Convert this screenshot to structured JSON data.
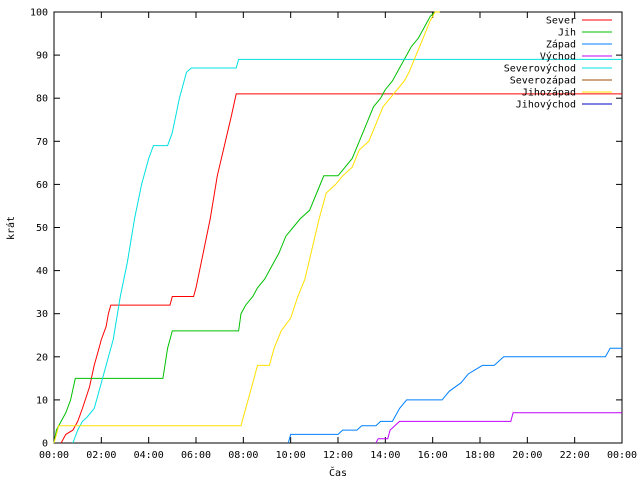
{
  "chart_data": {
    "type": "line",
    "xlabel": "Čas",
    "ylabel": "krát",
    "xlim": [
      0,
      24
    ],
    "ylim": [
      0,
      100
    ],
    "x_unit": "hours",
    "x_ticks": [
      {
        "value": 0,
        "label": "00:00"
      },
      {
        "value": 2,
        "label": "02:00"
      },
      {
        "value": 4,
        "label": "04:00"
      },
      {
        "value": 6,
        "label": "06:00"
      },
      {
        "value": 8,
        "label": "08:00"
      },
      {
        "value": 10,
        "label": "10:00"
      },
      {
        "value": 12,
        "label": "12:00"
      },
      {
        "value": 14,
        "label": "14:00"
      },
      {
        "value": 16,
        "label": "16:00"
      },
      {
        "value": 18,
        "label": "18:00"
      },
      {
        "value": 20,
        "label": "20:00"
      },
      {
        "value": 22,
        "label": "22:00"
      },
      {
        "value": 24,
        "label": "00:00"
      }
    ],
    "y_ticks": [
      0,
      10,
      20,
      30,
      40,
      50,
      60,
      70,
      80,
      90,
      100
    ],
    "grid": false,
    "legend_position": "top-right",
    "series": [
      {
        "name": "Sever",
        "color": "#ff0000",
        "points": [
          [
            0.3,
            0
          ],
          [
            0.5,
            2
          ],
          [
            0.8,
            3
          ],
          [
            1.0,
            5
          ],
          [
            1.2,
            8
          ],
          [
            1.5,
            13
          ],
          [
            1.7,
            18
          ],
          [
            1.9,
            22
          ],
          [
            2.0,
            24
          ],
          [
            2.2,
            27
          ],
          [
            2.3,
            30
          ],
          [
            2.4,
            32
          ],
          [
            3.8,
            32
          ],
          [
            4.1,
            32
          ],
          [
            4.9,
            32
          ],
          [
            5.0,
            34
          ],
          [
            5.9,
            34
          ],
          [
            6.0,
            36
          ],
          [
            6.3,
            44
          ],
          [
            6.6,
            52
          ],
          [
            6.9,
            62
          ],
          [
            7.2,
            69
          ],
          [
            7.5,
            76
          ],
          [
            7.7,
            81
          ],
          [
            24,
            81
          ]
        ]
      },
      {
        "name": "Jih",
        "color": "#00c000",
        "points": [
          [
            0,
            0
          ],
          [
            0.1,
            3
          ],
          [
            0.3,
            5
          ],
          [
            0.5,
            7
          ],
          [
            0.7,
            10
          ],
          [
            0.9,
            15
          ],
          [
            4.5,
            15
          ],
          [
            4.6,
            15
          ],
          [
            4.8,
            22
          ],
          [
            5.0,
            26
          ],
          [
            7.8,
            26
          ],
          [
            7.9,
            30
          ],
          [
            8.1,
            32
          ],
          [
            8.4,
            34
          ],
          [
            8.6,
            36
          ],
          [
            8.9,
            38
          ],
          [
            9.2,
            41
          ],
          [
            9.5,
            44
          ],
          [
            9.8,
            48
          ],
          [
            10.1,
            50
          ],
          [
            10.4,
            52
          ],
          [
            10.8,
            54
          ],
          [
            11.1,
            58
          ],
          [
            11.4,
            62
          ],
          [
            12.0,
            62
          ],
          [
            12.3,
            64
          ],
          [
            12.6,
            66
          ],
          [
            12.9,
            70
          ],
          [
            13.2,
            74
          ],
          [
            13.5,
            78
          ],
          [
            13.8,
            80
          ],
          [
            14.0,
            82
          ],
          [
            14.3,
            84
          ],
          [
            14.5,
            86
          ],
          [
            14.8,
            89
          ],
          [
            15.1,
            92
          ],
          [
            15.4,
            94
          ],
          [
            15.7,
            97
          ],
          [
            15.9,
            99
          ],
          [
            16.1,
            100
          ],
          [
            16.2,
            100
          ]
        ]
      },
      {
        "name": "Západ",
        "color": "#0080ff",
        "points": [
          [
            9.9,
            0
          ],
          [
            10.0,
            2
          ],
          [
            12.0,
            2
          ],
          [
            12.2,
            3
          ],
          [
            12.8,
            3
          ],
          [
            13.0,
            4
          ],
          [
            13.6,
            4
          ],
          [
            13.8,
            5
          ],
          [
            14.3,
            5
          ],
          [
            14.6,
            8
          ],
          [
            14.9,
            10
          ],
          [
            16.4,
            10
          ],
          [
            16.7,
            12
          ],
          [
            17.2,
            14
          ],
          [
            17.5,
            16
          ],
          [
            18.1,
            18
          ],
          [
            18.6,
            18
          ],
          [
            19.0,
            20
          ],
          [
            20.3,
            20
          ],
          [
            23.3,
            20
          ],
          [
            23.5,
            22
          ],
          [
            24,
            22
          ]
        ]
      },
      {
        "name": "Východ",
        "color": "#c000ff",
        "points": [
          [
            13.6,
            0
          ],
          [
            13.7,
            1
          ],
          [
            14.1,
            1
          ],
          [
            14.2,
            3
          ],
          [
            14.4,
            4
          ],
          [
            14.6,
            5
          ],
          [
            19.3,
            5
          ],
          [
            19.4,
            7
          ],
          [
            24,
            7
          ]
        ]
      },
      {
        "name": "Severovýchod",
        "color": "#00e0e0",
        "points": [
          [
            0.8,
            0
          ],
          [
            1.0,
            3
          ],
          [
            1.2,
            5
          ],
          [
            1.4,
            6
          ],
          [
            1.7,
            8
          ],
          [
            1.9,
            12
          ],
          [
            2.2,
            18
          ],
          [
            2.5,
            24
          ],
          [
            2.8,
            34
          ],
          [
            3.1,
            42
          ],
          [
            3.4,
            52
          ],
          [
            3.7,
            60
          ],
          [
            4.0,
            66
          ],
          [
            4.2,
            69
          ],
          [
            4.8,
            69
          ],
          [
            5.0,
            72
          ],
          [
            5.3,
            80
          ],
          [
            5.6,
            86
          ],
          [
            5.8,
            87
          ],
          [
            7.7,
            87
          ],
          [
            7.8,
            89
          ],
          [
            24,
            89
          ]
        ]
      },
      {
        "name": "Jihozápad",
        "color": "#ffe000",
        "points": [
          [
            0,
            0
          ],
          [
            0.1,
            2
          ],
          [
            0.2,
            4
          ],
          [
            7.9,
            4
          ],
          [
            8.0,
            6
          ],
          [
            8.2,
            10
          ],
          [
            8.4,
            14
          ],
          [
            8.6,
            18
          ],
          [
            9.1,
            18
          ],
          [
            9.3,
            22
          ],
          [
            9.6,
            26
          ],
          [
            10.0,
            29
          ],
          [
            10.3,
            34
          ],
          [
            10.6,
            38
          ],
          [
            10.9,
            45
          ],
          [
            11.2,
            52
          ],
          [
            11.5,
            58
          ],
          [
            11.9,
            60
          ],
          [
            12.2,
            62
          ],
          [
            12.6,
            64
          ],
          [
            12.9,
            68
          ],
          [
            13.3,
            70
          ],
          [
            13.6,
            74
          ],
          [
            13.9,
            78
          ],
          [
            14.2,
            80
          ],
          [
            14.5,
            82
          ],
          [
            14.8,
            84
          ],
          [
            15.0,
            86
          ],
          [
            15.3,
            90
          ],
          [
            15.6,
            94
          ],
          [
            15.9,
            98
          ],
          [
            16.1,
            100
          ],
          [
            16.3,
            100
          ]
        ]
      },
      {
        "name": "Severozápad",
        "color": "#a05000",
        "points": []
      },
      {
        "name": "Jihovýchod",
        "color": "#0000c0",
        "points": []
      }
    ],
    "legend_order": [
      "Sever",
      "Jih",
      "Západ",
      "Východ",
      "Severovýchod",
      "Severozápad",
      "Jihozápad",
      "Jihovýchod"
    ]
  }
}
